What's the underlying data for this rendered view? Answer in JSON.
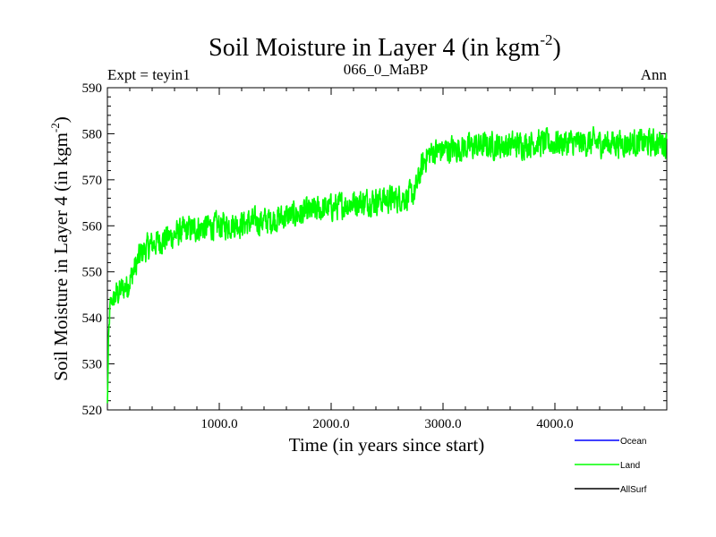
{
  "chart_data": {
    "type": "line",
    "title": "Soil Moisture in Layer 4 (in kgm",
    "title_sup": "-2",
    "title_close": ")",
    "left_subtitle": "Expt = teyin1",
    "center_subtitle": "066_0_MaBP",
    "right_subtitle": "Ann",
    "xlabel": "Time (in years since start)",
    "ylabel": "Soil Moisture in Layer 4 (in kgm",
    "ylabel_sup": "-2",
    "ylabel_close": ")",
    "xlim": [
      0,
      5000
    ],
    "ylim": [
      520,
      590
    ],
    "xticks": [
      1000,
      2000,
      3000,
      4000
    ],
    "xtick_labels": [
      "1000.0",
      "2000.0",
      "3000.0",
      "4000.0"
    ],
    "yticks": [
      520,
      530,
      540,
      550,
      560,
      570,
      580,
      590
    ],
    "ytick_labels": [
      "520",
      "530",
      "540",
      "550",
      "560",
      "570",
      "580",
      "590"
    ],
    "legend_position": "bottom-right, below plot",
    "series": [
      {
        "name": "Ocean",
        "color": "#0000ff",
        "x": [],
        "values": []
      },
      {
        "name": "Land",
        "color": "#00ff00",
        "x": [
          0,
          10,
          25,
          50,
          80,
          120,
          180,
          250,
          300,
          400,
          500,
          600,
          700,
          800,
          1000,
          1200,
          1400,
          1600,
          1800,
          2000,
          2200,
          2400,
          2600,
          2700,
          2750,
          2800,
          2850,
          2900,
          3000,
          3200,
          3400,
          3600,
          3800,
          4000,
          4200,
          4400,
          4600,
          4800,
          5000
        ],
        "values": [
          521,
          535,
          543,
          544,
          545,
          546,
          547,
          551,
          554,
          556,
          557,
          558,
          559,
          559.5,
          560,
          560.5,
          561,
          562,
          563,
          564,
          565,
          565.5,
          566,
          566.5,
          567,
          572,
          575,
          576,
          576.5,
          577,
          577.5,
          577.5,
          578,
          578,
          578,
          578,
          578,
          578,
          578
        ]
      },
      {
        "name": "AllSurf",
        "color": "#000000",
        "x": [],
        "values": []
      }
    ]
  }
}
